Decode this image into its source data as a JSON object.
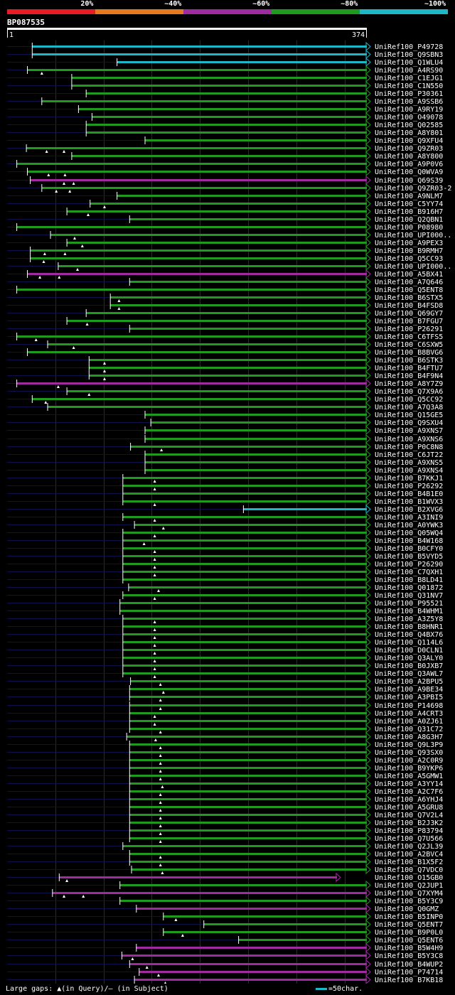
{
  "legend": {
    "items": [
      {
        "label": "20%",
        "color": "#e81c24"
      },
      {
        "label": "~40%",
        "color": "#e8781c"
      },
      {
        "label": "~60%",
        "color": "#a02aa0"
      },
      {
        "label": "~80%",
        "color": "#1e9b1e"
      },
      {
        "label": "~100%",
        "color": "#1cb8c8"
      }
    ]
  },
  "query": {
    "id": "BP087535",
    "start_label": "1",
    "end_label": "374",
    "length": 374
  },
  "footer": {
    "gaps_prefix": "Large gaps: ",
    "query_gap_text": "(in Query)/",
    "subject_gap_glyph": "–",
    "subject_gap_text": " (in Subject)",
    "scale_text": "=50char."
  },
  "chart_data": {
    "type": "alignment-map",
    "title": "BP087535",
    "query_length": 374,
    "x_range": [
      1,
      374
    ],
    "hits": [
      {
        "id": "UniRef100_P49728",
        "start": 27,
        "end": 374,
        "id_class": "~100%",
        "q_gaps": []
      },
      {
        "id": "UniRef100_Q9SBN3",
        "start": 27,
        "end": 374,
        "id_class": "~100%",
        "q_gaps": []
      },
      {
        "id": "UniRef100_Q1WLU4",
        "start": 115,
        "end": 374,
        "id_class": "~100%",
        "q_gaps": []
      },
      {
        "id": "UniRef100_A4RS90",
        "start": 22,
        "end": 374,
        "id_class": "~80%",
        "q_gaps": [
          37
        ]
      },
      {
        "id": "UniRef100_C1EJG1",
        "start": 68,
        "end": 374,
        "id_class": "~80%",
        "q_gaps": []
      },
      {
        "id": "UniRef100_C1N550",
        "start": 68,
        "end": 374,
        "id_class": "~80%",
        "q_gaps": []
      },
      {
        "id": "UniRef100_P30361",
        "start": 83,
        "end": 374,
        "id_class": "~80%",
        "q_gaps": []
      },
      {
        "id": "UniRef100_A9SSB6",
        "start": 37,
        "end": 374,
        "id_class": "~80%",
        "q_gaps": []
      },
      {
        "id": "UniRef100_A9RY19",
        "start": 75,
        "end": 374,
        "id_class": "~80%",
        "q_gaps": []
      },
      {
        "id": "UniRef100_O49078",
        "start": 89,
        "end": 374,
        "id_class": "~80%",
        "q_gaps": []
      },
      {
        "id": "UniRef100_Q02585",
        "start": 83,
        "end": 374,
        "id_class": "~80%",
        "q_gaps": []
      },
      {
        "id": "UniRef100_A8Y801",
        "start": 83,
        "end": 374,
        "id_class": "~80%",
        "q_gaps": []
      },
      {
        "id": "UniRef100_Q9XFU4",
        "start": 144,
        "end": 374,
        "id_class": "~80%",
        "q_gaps": []
      },
      {
        "id": "UniRef100_Q9ZR03",
        "start": 21,
        "end": 374,
        "id_class": "~80%",
        "q_gaps": [
          42,
          60
        ]
      },
      {
        "id": "UniRef100_A8Y800",
        "start": 68,
        "end": 374,
        "id_class": "~80%",
        "q_gaps": []
      },
      {
        "id": "UniRef100_A9P0V6",
        "start": 11,
        "end": 374,
        "id_class": "~80%",
        "q_gaps": []
      },
      {
        "id": "UniRef100_Q0WVA9",
        "start": 22,
        "end": 374,
        "id_class": "~80%",
        "q_gaps": [
          44,
          61
        ]
      },
      {
        "id": "UniRef100_Q69S39",
        "start": 25,
        "end": 374,
        "id_class": "~60%",
        "q_gaps": [
          60,
          70
        ]
      },
      {
        "id": "UniRef100_Q9ZR03-2",
        "start": 37,
        "end": 374,
        "id_class": "~80%",
        "q_gaps": [
          52,
          66
        ]
      },
      {
        "id": "UniRef100_A9NLM7",
        "start": 115,
        "end": 374,
        "id_class": "~80%",
        "q_gaps": []
      },
      {
        "id": "UniRef100_C5YY74",
        "start": 87,
        "end": 374,
        "id_class": "~80%",
        "q_gaps": [
          102
        ]
      },
      {
        "id": "UniRef100_B916H7",
        "start": 63,
        "end": 374,
        "id_class": "~80%",
        "q_gaps": [
          85
        ]
      },
      {
        "id": "UniRef100_Q2QBN1",
        "start": 128,
        "end": 374,
        "id_class": "~80%",
        "q_gaps": []
      },
      {
        "id": "UniRef100_P08980",
        "start": 11,
        "end": 374,
        "id_class": "~80%",
        "q_gaps": []
      },
      {
        "id": "UniRef100_UPI000..",
        "start": 46,
        "end": 374,
        "id_class": "~80%",
        "q_gaps": [
          71
        ]
      },
      {
        "id": "UniRef100_A9PEX3",
        "start": 63,
        "end": 374,
        "id_class": "~80%",
        "q_gaps": [
          79
        ]
      },
      {
        "id": "UniRef100_B9RMH7",
        "start": 25,
        "end": 374,
        "id_class": "~80%",
        "q_gaps": [
          40,
          61
        ]
      },
      {
        "id": "UniRef100_Q5CC93",
        "start": 25,
        "end": 374,
        "id_class": "~80%",
        "q_gaps": [
          39
        ]
      },
      {
        "id": "UniRef100_UPI000..",
        "start": 54,
        "end": 374,
        "id_class": "~80%",
        "q_gaps": [
          74
        ]
      },
      {
        "id": "UniRef100_A5BX41",
        "start": 22,
        "end": 374,
        "id_class": "~60%",
        "q_gaps": [
          35,
          55
        ]
      },
      {
        "id": "UniRef100_A7Q646",
        "start": 128,
        "end": 374,
        "id_class": "~80%",
        "q_gaps": []
      },
      {
        "id": "UniRef100_Q5ENT8",
        "start": 11,
        "end": 374,
        "id_class": "~80%",
        "q_gaps": []
      },
      {
        "id": "UniRef100_B6STX5",
        "start": 108,
        "end": 374,
        "id_class": "~80%",
        "q_gaps": [
          117
        ]
      },
      {
        "id": "UniRef100_B4FSD8",
        "start": 108,
        "end": 374,
        "id_class": "~80%",
        "q_gaps": [
          117
        ]
      },
      {
        "id": "UniRef100_Q69GY7",
        "start": 83,
        "end": 374,
        "id_class": "~80%",
        "q_gaps": []
      },
      {
        "id": "UniRef100_B7FGU7",
        "start": 63,
        "end": 374,
        "id_class": "~80%",
        "q_gaps": [
          84
        ]
      },
      {
        "id": "UniRef100_P26291",
        "start": 128,
        "end": 374,
        "id_class": "~80%",
        "q_gaps": []
      },
      {
        "id": "UniRef100_C6TFS5",
        "start": 11,
        "end": 374,
        "id_class": "~80%",
        "q_gaps": [
          31
        ]
      },
      {
        "id": "UniRef100_C6SXW5",
        "start": 43,
        "end": 374,
        "id_class": "~80%",
        "q_gaps": [
          70
        ]
      },
      {
        "id": "UniRef100_B8BVG6",
        "start": 22,
        "end": 374,
        "id_class": "~80%",
        "q_gaps": []
      },
      {
        "id": "UniRef100_B6STK3",
        "start": 86,
        "end": 374,
        "id_class": "~80%",
        "q_gaps": [
          102
        ]
      },
      {
        "id": "UniRef100_B4FTU7",
        "start": 86,
        "end": 374,
        "id_class": "~80%",
        "q_gaps": [
          102
        ]
      },
      {
        "id": "UniRef100_B4F9N4",
        "start": 86,
        "end": 374,
        "id_class": "~80%",
        "q_gaps": [
          102
        ]
      },
      {
        "id": "UniRef100_A8Y7Z9",
        "start": 11,
        "end": 374,
        "id_class": "~60%",
        "q_gaps": [
          54
        ]
      },
      {
        "id": "UniRef100_Q7X9A6",
        "start": 63,
        "end": 374,
        "id_class": "~80%",
        "q_gaps": [
          86
        ]
      },
      {
        "id": "UniRef100_Q5CC92",
        "start": 27,
        "end": 374,
        "id_class": "~80%",
        "q_gaps": [
          41
        ]
      },
      {
        "id": "UniRef100_A7Q3A8",
        "start": 43,
        "end": 374,
        "id_class": "~80%",
        "q_gaps": []
      },
      {
        "id": "UniRef100_Q15GE5",
        "start": 144,
        "end": 374,
        "id_class": "~80%",
        "q_gaps": []
      },
      {
        "id": "UniRef100_Q9SXU4",
        "start": 150,
        "end": 374,
        "id_class": "~80%",
        "q_gaps": []
      },
      {
        "id": "UniRef100_A9XNS7",
        "start": 144,
        "end": 374,
        "id_class": "~80%",
        "q_gaps": []
      },
      {
        "id": "UniRef100_A9XNS6",
        "start": 144,
        "end": 374,
        "id_class": "~80%",
        "q_gaps": []
      },
      {
        "id": "UniRef100_P0C8N8",
        "start": 129,
        "end": 374,
        "id_class": "~80%",
        "q_gaps": [
          161
        ]
      },
      {
        "id": "UniRef100_C6JT22",
        "start": 144,
        "end": 374,
        "id_class": "~80%",
        "q_gaps": []
      },
      {
        "id": "UniRef100_A9XNS5",
        "start": 144,
        "end": 374,
        "id_class": "~80%",
        "q_gaps": []
      },
      {
        "id": "UniRef100_A9XNS4",
        "start": 144,
        "end": 374,
        "id_class": "~80%",
        "q_gaps": []
      },
      {
        "id": "UniRef100_B7KKJ1",
        "start": 121,
        "end": 374,
        "id_class": "~80%",
        "q_gaps": [
          154
        ]
      },
      {
        "id": "UniRef100_P26292",
        "start": 121,
        "end": 374,
        "id_class": "~80%",
        "q_gaps": [
          154
        ]
      },
      {
        "id": "UniRef100_B4B1E0",
        "start": 121,
        "end": 374,
        "id_class": "~80%",
        "q_gaps": []
      },
      {
        "id": "UniRef100_B1WVX3",
        "start": 121,
        "end": 374,
        "id_class": "~80%",
        "q_gaps": [
          154
        ]
      },
      {
        "id": "UniRef100_B2XVG6",
        "start": 246,
        "end": 374,
        "id_class": "~100%",
        "q_gaps": []
      },
      {
        "id": "UniRef100_A3INI9",
        "start": 121,
        "end": 374,
        "id_class": "~80%",
        "q_gaps": [
          154
        ]
      },
      {
        "id": "UniRef100_A0YWK3",
        "start": 133,
        "end": 374,
        "id_class": "~80%",
        "q_gaps": [
          163
        ]
      },
      {
        "id": "UniRef100_Q05WQ4",
        "start": 121,
        "end": 374,
        "id_class": "~80%",
        "q_gaps": [
          154
        ]
      },
      {
        "id": "UniRef100_B4W168",
        "start": 121,
        "end": 374,
        "id_class": "~80%",
        "q_gaps": [
          143
        ]
      },
      {
        "id": "UniRef100_B0CFY0",
        "start": 121,
        "end": 374,
        "id_class": "~80%",
        "q_gaps": [
          154
        ]
      },
      {
        "id": "UniRef100_B5VYD5",
        "start": 121,
        "end": 374,
        "id_class": "~80%",
        "q_gaps": [
          154
        ]
      },
      {
        "id": "UniRef100_P26290",
        "start": 121,
        "end": 374,
        "id_class": "~80%",
        "q_gaps": [
          154
        ]
      },
      {
        "id": "UniRef100_C7QXH1",
        "start": 121,
        "end": 374,
        "id_class": "~80%",
        "q_gaps": [
          154
        ]
      },
      {
        "id": "UniRef100_B8LD41",
        "start": 121,
        "end": 374,
        "id_class": "~80%",
        "q_gaps": []
      },
      {
        "id": "UniRef100_Q01872",
        "start": 127,
        "end": 374,
        "id_class": "~80%",
        "q_gaps": [
          158
        ]
      },
      {
        "id": "UniRef100_Q31NV7",
        "start": 121,
        "end": 374,
        "id_class": "~80%",
        "q_gaps": [
          154
        ]
      },
      {
        "id": "UniRef100_P95521",
        "start": 118,
        "end": 374,
        "id_class": "~80%",
        "q_gaps": []
      },
      {
        "id": "UniRef100_B4WHM1",
        "start": 118,
        "end": 374,
        "id_class": "~80%",
        "q_gaps": []
      },
      {
        "id": "UniRef100_A3Z5Y8",
        "start": 121,
        "end": 374,
        "id_class": "~80%",
        "q_gaps": [
          154
        ]
      },
      {
        "id": "UniRef100_B8HNR1",
        "start": 121,
        "end": 374,
        "id_class": "~80%",
        "q_gaps": [
          154
        ]
      },
      {
        "id": "UniRef100_Q4BX76",
        "start": 121,
        "end": 374,
        "id_class": "~80%",
        "q_gaps": [
          154
        ]
      },
      {
        "id": "UniRef100_Q114L6",
        "start": 121,
        "end": 374,
        "id_class": "~80%",
        "q_gaps": [
          154
        ]
      },
      {
        "id": "UniRef100_D0CLN1",
        "start": 121,
        "end": 374,
        "id_class": "~80%",
        "q_gaps": [
          154
        ]
      },
      {
        "id": "UniRef100_Q3ALY0",
        "start": 121,
        "end": 374,
        "id_class": "~80%",
        "q_gaps": [
          154
        ]
      },
      {
        "id": "UniRef100_B0JXB7",
        "start": 121,
        "end": 374,
        "id_class": "~80%",
        "q_gaps": [
          154
        ]
      },
      {
        "id": "UniRef100_Q3AWL7",
        "start": 121,
        "end": 374,
        "id_class": "~80%",
        "q_gaps": [
          154
        ]
      },
      {
        "id": "UniRef100_A2BPU5",
        "start": 129,
        "end": 374,
        "id_class": "~80%",
        "q_gaps": [
          160
        ]
      },
      {
        "id": "UniRef100_A9BE34",
        "start": 128,
        "end": 374,
        "id_class": "~80%",
        "q_gaps": [
          163
        ]
      },
      {
        "id": "UniRef100_A3PBI5",
        "start": 128,
        "end": 374,
        "id_class": "~80%",
        "q_gaps": [
          160
        ]
      },
      {
        "id": "UniRef100_P14698",
        "start": 128,
        "end": 374,
        "id_class": "~80%",
        "q_gaps": [
          160
        ]
      },
      {
        "id": "UniRef100_A4CRT3",
        "start": 128,
        "end": 374,
        "id_class": "~80%",
        "q_gaps": [
          154
        ]
      },
      {
        "id": "UniRef100_A0ZJ61",
        "start": 128,
        "end": 374,
        "id_class": "~80%",
        "q_gaps": [
          154
        ]
      },
      {
        "id": "UniRef100_Q31C72",
        "start": 128,
        "end": 374,
        "id_class": "~80%",
        "q_gaps": [
          160
        ]
      },
      {
        "id": "UniRef100_A8G3H7",
        "start": 125,
        "end": 374,
        "id_class": "~80%",
        "q_gaps": [
          155
        ]
      },
      {
        "id": "UniRef100_Q9L3P9",
        "start": 128,
        "end": 374,
        "id_class": "~80%",
        "q_gaps": [
          160
        ]
      },
      {
        "id": "UniRef100_Q93SX0",
        "start": 128,
        "end": 374,
        "id_class": "~80%",
        "q_gaps": [
          160
        ]
      },
      {
        "id": "UniRef100_A2C0R9",
        "start": 128,
        "end": 374,
        "id_class": "~80%",
        "q_gaps": [
          160
        ]
      },
      {
        "id": "UniRef100_B9YKP6",
        "start": 128,
        "end": 374,
        "id_class": "~80%",
        "q_gaps": [
          160
        ]
      },
      {
        "id": "UniRef100_A5GMW1",
        "start": 128,
        "end": 374,
        "id_class": "~80%",
        "q_gaps": [
          160
        ]
      },
      {
        "id": "UniRef100_A3YY14",
        "start": 128,
        "end": 374,
        "id_class": "~80%",
        "q_gaps": [
          162
        ]
      },
      {
        "id": "UniRef100_A2C7F6",
        "start": 128,
        "end": 374,
        "id_class": "~80%",
        "q_gaps": [
          160
        ]
      },
      {
        "id": "UniRef100_A6YHJ4",
        "start": 128,
        "end": 374,
        "id_class": "~80%",
        "q_gaps": [
          160
        ]
      },
      {
        "id": "UniRef100_A5GRU8",
        "start": 128,
        "end": 374,
        "id_class": "~80%",
        "q_gaps": [
          160
        ]
      },
      {
        "id": "UniRef100_Q7V2L4",
        "start": 128,
        "end": 374,
        "id_class": "~80%",
        "q_gaps": [
          160
        ]
      },
      {
        "id": "UniRef100_B2J3K2",
        "start": 128,
        "end": 374,
        "id_class": "~80%",
        "q_gaps": [
          160
        ]
      },
      {
        "id": "UniRef100_P83794",
        "start": 128,
        "end": 374,
        "id_class": "~80%",
        "q_gaps": [
          160
        ]
      },
      {
        "id": "UniRef100_Q7U566",
        "start": 128,
        "end": 374,
        "id_class": "~80%",
        "q_gaps": [
          160
        ]
      },
      {
        "id": "UniRef100_Q2JL39",
        "start": 121,
        "end": 374,
        "id_class": "~80%",
        "q_gaps": []
      },
      {
        "id": "UniRef100_A2BVC4",
        "start": 128,
        "end": 374,
        "id_class": "~80%",
        "q_gaps": [
          160
        ]
      },
      {
        "id": "UniRef100_B1X5F2",
        "start": 128,
        "end": 374,
        "id_class": "~80%",
        "q_gaps": [
          160
        ]
      },
      {
        "id": "UniRef100_Q7VDC0",
        "start": 130,
        "end": 374,
        "id_class": "~80%",
        "q_gaps": [
          162
        ]
      },
      {
        "id": "UniRef100_O15GB0",
        "start": 55,
        "end": 343,
        "id_class": "~60%",
        "q_gaps": [
          63
        ]
      },
      {
        "id": "UniRef100_Q2JUP1",
        "start": 118,
        "end": 374,
        "id_class": "~80%",
        "q_gaps": []
      },
      {
        "id": "UniRef100_Q7XYM4",
        "start": 48,
        "end": 374,
        "id_class": "~60%",
        "q_gaps": [
          60,
          80
        ]
      },
      {
        "id": "UniRef100_B5Y3C9",
        "start": 118,
        "end": 374,
        "id_class": "~80%",
        "q_gaps": []
      },
      {
        "id": "UniRef100_Q0GMZ",
        "start": 135,
        "end": 374,
        "id_class": "~60%",
        "q_gaps": []
      },
      {
        "id": "UniRef100_B5INP0",
        "start": 163,
        "end": 374,
        "id_class": "~80%",
        "q_gaps": [
          176
        ]
      },
      {
        "id": "UniRef100_Q5ENT7",
        "start": 205,
        "end": 374,
        "id_class": "~80%",
        "q_gaps": []
      },
      {
        "id": "UniRef100_B9P0L0",
        "start": 163,
        "end": 374,
        "id_class": "~80%",
        "q_gaps": [
          183
        ]
      },
      {
        "id": "UniRef100_Q5ENT6",
        "start": 241,
        "end": 374,
        "id_class": "~80%",
        "q_gaps": []
      },
      {
        "id": "UniRef100_B5W4H9",
        "start": 135,
        "end": 374,
        "id_class": "~60%",
        "q_gaps": []
      },
      {
        "id": "UniRef100_B5Y3C8",
        "start": 120,
        "end": 374,
        "id_class": "~60%",
        "q_gaps": [
          131
        ]
      },
      {
        "id": "UniRef100_B4WUP2",
        "start": 128,
        "end": 374,
        "id_class": "~60%",
        "q_gaps": [
          146
        ]
      },
      {
        "id": "UniRef100_P74714",
        "start": 138,
        "end": 374,
        "id_class": "~60%",
        "q_gaps": [
          158
        ]
      },
      {
        "id": "UniRef100_B7KB18",
        "start": 133,
        "end": 374,
        "id_class": "~60%",
        "q_gaps": [
          165
        ]
      }
    ]
  }
}
